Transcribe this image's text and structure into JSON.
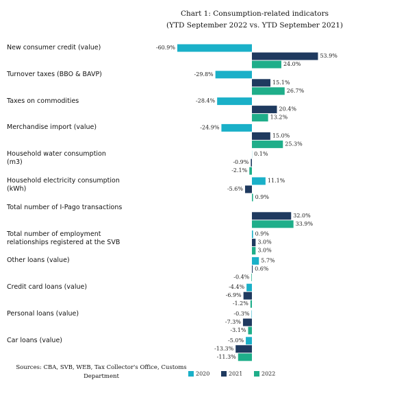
{
  "chart_data": {
    "type": "bar",
    "orientation": "horizontal",
    "title": "Chart 1: Consumption-related  indicators",
    "subtitle": "(YTD September 2022 vs. YTD September 2021)",
    "source": "Sources: CBA, SVB, WEB, Tax Collector's Office, Customs Department",
    "categories": [
      "New consumer credit (value)",
      "Turnover taxes (BBO & BAVP)",
      "Taxes on commodities",
      "Merchandise import (value)",
      "Household water consumption (m3)",
      "Household electricity consumption (kWh)",
      "Total number of I-Pago transactions",
      "Total number of employment relationships registered at the SVB",
      "Other loans (value)",
      "Credit card loans (value)",
      "Personal loans (value)",
      "Car loans (value)"
    ],
    "series": [
      {
        "name": "2020",
        "color": "#1ab0c8",
        "values": [
          -60.9,
          -29.8,
          -28.4,
          -24.9,
          0.1,
          11.1,
          null,
          0.9,
          5.7,
          -4.4,
          -0.3,
          -5.0
        ],
        "value_labels": [
          "-60.9%",
          "-29.8%",
          "-28.4%",
          "-24.9%",
          "0.1%",
          "11.1%",
          null,
          "0.9%",
          "5.7%",
          "-4.4%",
          "-0.3%",
          "-5.0%"
        ]
      },
      {
        "name": "2021",
        "color": "#1f3a5f",
        "values": [
          53.9,
          15.1,
          20.4,
          15.0,
          -0.9,
          -5.6,
          32.0,
          3.0,
          0.6,
          -6.9,
          -7.3,
          -13.3
        ],
        "value_labels": [
          "53.9%",
          "15.1%",
          "20.4%",
          "15.0%",
          "-0.9%",
          "-5.6%",
          "32.0%",
          "3.0%",
          "0.6%",
          "-6.9%",
          "-7.3%",
          "-13.3%"
        ]
      },
      {
        "name": "2022",
        "color": "#1fae8a",
        "values": [
          24.0,
          26.7,
          13.2,
          25.3,
          -2.1,
          0.9,
          33.9,
          3.0,
          -0.4,
          -1.2,
          -3.1,
          -11.3
        ],
        "value_labels": [
          "24.0%",
          "26.7%",
          "13.2%",
          "25.3%",
          "-2.1%",
          "0.9%",
          "33.9%",
          "3.0%",
          "-0.4%",
          "-1.2%",
          "-3.1%",
          "-11.3%"
        ]
      }
    ],
    "legend": "bottom"
  }
}
